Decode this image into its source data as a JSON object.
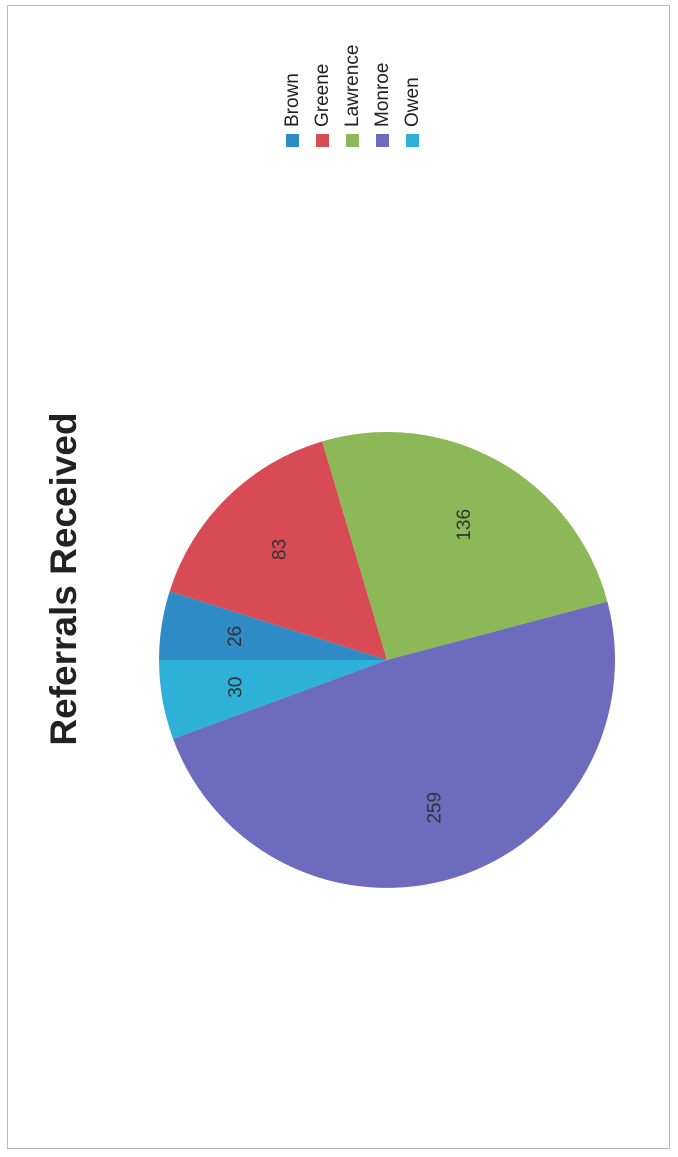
{
  "chart_data": {
    "type": "pie",
    "title": "Referrals Received",
    "categories": [
      "Brown",
      "Greene",
      "Lawrence",
      "Monroe",
      "Owen"
    ],
    "values": [
      26,
      83,
      136,
      259,
      30
    ],
    "colors": [
      "#2e8bc6",
      "#d84b55",
      "#8cb858",
      "#6c6bbd",
      "#2db1d9"
    ],
    "slice_label_color": "#333333",
    "data_labels": true,
    "legend_position": "right",
    "orientation": "page rotated 90 degrees counter-clockwise"
  }
}
